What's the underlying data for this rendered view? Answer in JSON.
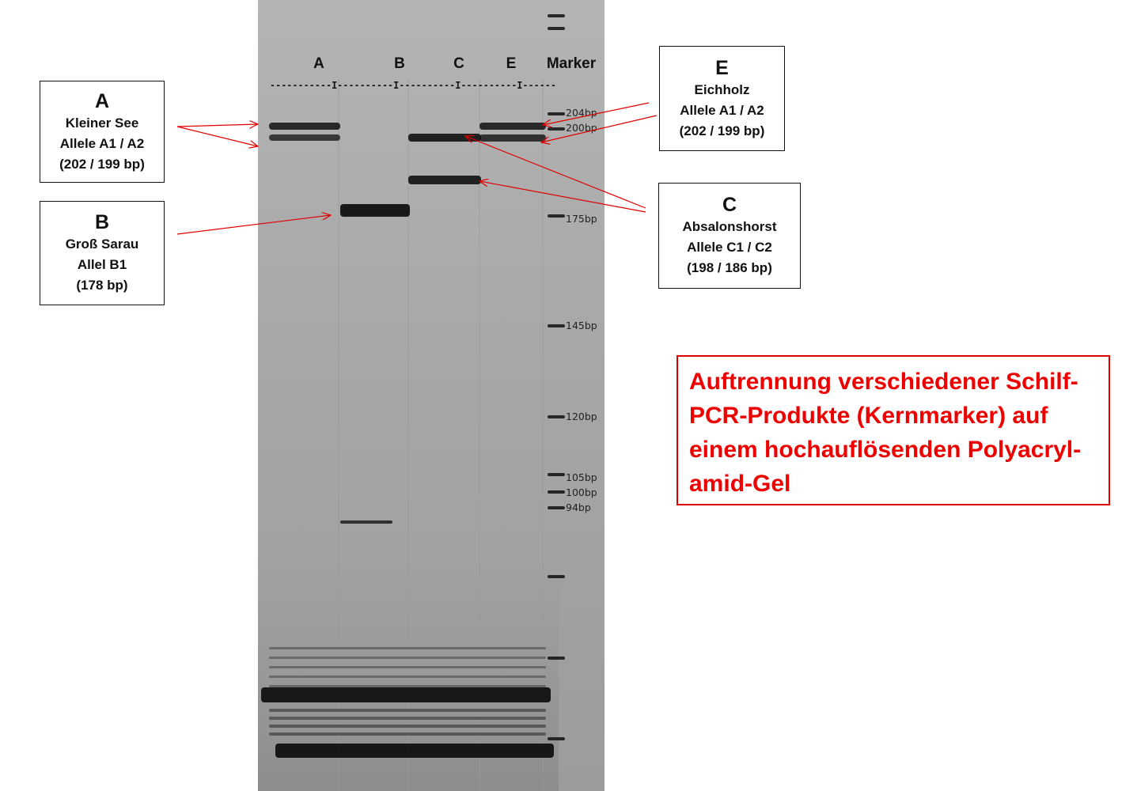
{
  "gel": {
    "lane_labels": [
      "A",
      "B",
      "C",
      "E",
      "Marker"
    ],
    "separator_row": "-----------I----------I----------I----------I------",
    "marker_sizes": [
      "204bp",
      "200bp",
      "175bp",
      "145bp",
      "120bp",
      "105bp",
      "100bp",
      "94bp"
    ]
  },
  "boxes": {
    "a": {
      "letter": "A",
      "lines": [
        "Kleiner See",
        "Allele A1 / A2",
        "(202 / 199 bp)"
      ]
    },
    "b": {
      "letter": "B",
      "lines": [
        "Groß Sarau",
        "Allel B1",
        "(178 bp)"
      ]
    },
    "e": {
      "letter": "E",
      "lines": [
        "Eichholz",
        "Allele A1 / A2",
        "(202 / 199 bp)"
      ]
    },
    "c": {
      "letter": "C",
      "lines": [
        "Absalonshorst",
        "Allele C1 / C2",
        "(198 / 186 bp)"
      ]
    }
  },
  "caption": "Auftrennung verschiedener Schilf-PCR-Produkte (Kernmarker) auf einem hochauflösenden Polyacryl-amid-Gel",
  "colors": {
    "annotation": "#e00000",
    "gel_background": "#a9a9a9",
    "band": "#111111"
  }
}
